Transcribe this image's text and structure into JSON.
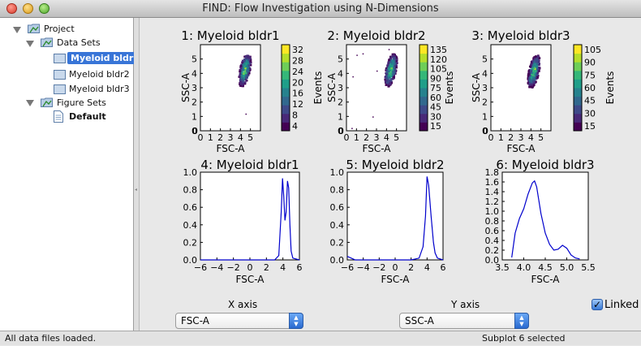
{
  "window": {
    "title": "FIND: Flow Investigation using N-Dimensions"
  },
  "tree": {
    "project": "Project",
    "data_sets": "Data Sets",
    "datasets": [
      "Myeloid bldr1",
      "Myeloid bldr2",
      "Myeloid bldr3"
    ],
    "selected_dataset": "Myeloid bldr1",
    "figure_sets": "Figure Sets",
    "figure_default": "Default"
  },
  "controls": {
    "x_axis_label": "X axis",
    "x_axis_value": "FSC-A",
    "y_axis_label": "Y axis",
    "y_axis_value": "SSC-A",
    "linked_label": "Linked",
    "linked_checked": true
  },
  "status": {
    "left": "All data files loaded.",
    "right": "Subplot 6 selected"
  },
  "colors": {
    "selection": "#3875d7",
    "curve": "#0000cc",
    "viridis_low": "#440154",
    "viridis_high": "#fde725"
  },
  "chart_data": [
    {
      "type": "heatmap",
      "title": "1: Myeloid bldr1",
      "xlabel": "FSC-A",
      "ylabel": "SSC-A",
      "xlim": [
        0,
        6
      ],
      "ylim": [
        0,
        6
      ],
      "xticks": [
        0,
        1,
        2,
        3,
        4,
        5
      ],
      "yticks": [
        0,
        1,
        2,
        3,
        4,
        5
      ],
      "colorbar_label": "Events",
      "colorbar_ticks": [
        4,
        8,
        12,
        16,
        20,
        24,
        28,
        32
      ],
      "description_points": "dense cluster at FSC 3.8-5.0, SSC 3.0-5.3"
    },
    {
      "type": "heatmap",
      "title": "2: Myeloid bldr2",
      "xlabel": "FSC-A",
      "ylabel": "SSC-A",
      "xlim": [
        0,
        6
      ],
      "ylim": [
        0,
        6
      ],
      "xticks": [
        0,
        1,
        2,
        3,
        4,
        5
      ],
      "yticks": [
        0,
        1,
        2,
        3,
        4,
        5
      ],
      "colorbar_label": "Events",
      "colorbar_ticks": [
        15,
        30,
        45,
        60,
        75,
        90,
        105,
        120,
        135
      ]
    },
    {
      "type": "heatmap",
      "title": "3: Myeloid bldr3",
      "xlabel": "FSC-A",
      "ylabel": "SSC-A",
      "xlim": [
        0,
        6
      ],
      "ylim": [
        0,
        6
      ],
      "xticks": [
        0,
        1,
        2,
        3,
        4,
        5
      ],
      "yticks": [
        0,
        1,
        2,
        3,
        4,
        5
      ],
      "colorbar_label": "Events",
      "colorbar_ticks": [
        15,
        30,
        45,
        60,
        75,
        90,
        105
      ]
    },
    {
      "type": "line",
      "title": "4: Myeloid bldr1",
      "xlabel": "FSC-A",
      "xlim": [
        -6,
        6
      ],
      "ylim": [
        0,
        1.0
      ],
      "xticks": [
        -6,
        -4,
        -2,
        0,
        2,
        4,
        6
      ],
      "yticks": [
        0.0,
        0.2,
        0.4,
        0.6,
        0.8,
        1.0
      ],
      "x": [
        -6,
        -4,
        -2,
        0,
        2,
        3,
        3.5,
        3.8,
        3.95,
        4.1,
        4.25,
        4.4,
        4.55,
        4.7,
        4.85,
        5.0,
        5.2,
        6
      ],
      "y": [
        0,
        0,
        0,
        0,
        0,
        0,
        0.05,
        0.55,
        0.93,
        0.72,
        0.45,
        0.55,
        0.9,
        0.82,
        0.4,
        0.1,
        0.02,
        0
      ]
    },
    {
      "type": "line",
      "title": "5: Myeloid bldr2",
      "xlabel": "FSC-A",
      "xlim": [
        -6,
        6
      ],
      "ylim": [
        0,
        1.0
      ],
      "xticks": [
        -6,
        -4,
        -2,
        0,
        2,
        4,
        6
      ],
      "yticks": [
        0.0,
        0.2,
        0.4,
        0.6,
        0.8,
        1.0
      ],
      "x": [
        -6,
        -5.5,
        -5,
        -4,
        -2,
        0,
        2,
        3,
        3.5,
        3.8,
        4.0,
        4.2,
        4.5,
        4.8,
        5.0,
        5.3,
        6
      ],
      "y": [
        0.04,
        0.02,
        0,
        0,
        0,
        0,
        0,
        0.02,
        0.15,
        0.5,
        0.95,
        0.85,
        0.5,
        0.2,
        0.08,
        0.02,
        0
      ]
    },
    {
      "type": "line",
      "title": "6: Myeloid bldr3",
      "xlabel": "FSC-A",
      "xlim": [
        3.5,
        5.5
      ],
      "ylim": [
        0,
        1.8
      ],
      "xticks": [
        3.5,
        4.0,
        4.5,
        5.0,
        5.5
      ],
      "yticks": [
        0.0,
        0.2,
        0.4,
        0.6,
        0.8,
        1.0,
        1.2,
        1.4,
        1.6,
        1.8
      ],
      "x": [
        3.72,
        3.8,
        3.9,
        4.0,
        4.1,
        4.2,
        4.25,
        4.3,
        4.4,
        4.5,
        4.6,
        4.7,
        4.8,
        4.9,
        5.0,
        5.1,
        5.2,
        5.3
      ],
      "y": [
        0.05,
        0.55,
        0.85,
        1.05,
        1.35,
        1.58,
        1.62,
        1.5,
        0.95,
        0.55,
        0.32,
        0.2,
        0.22,
        0.3,
        0.24,
        0.1,
        0.04,
        0.02
      ]
    }
  ]
}
